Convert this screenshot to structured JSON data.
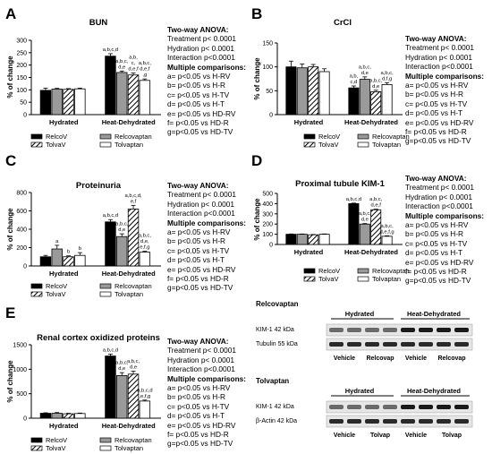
{
  "panels": [
    {
      "id": "A",
      "title": "BUN",
      "ylim": [
        0,
        300
      ],
      "yticks": [
        0,
        50,
        100,
        150,
        200,
        250,
        300
      ],
      "ylabel": "% of change",
      "groups": [
        "Hydrated",
        "Heat-Dehydrated"
      ],
      "values": [
        [
          98,
          103,
          102,
          104
        ],
        [
          236,
          170,
          160,
          138
        ]
      ],
      "errors": [
        [
          9,
          3,
          3,
          3
        ],
        [
          10,
          6,
          8,
          6
        ]
      ],
      "labels": [
        [
          "",
          "",
          "",
          ""
        ],
        [
          "a,b,c,d",
          "a,b,c,\nd,e",
          "a,b,\nc,\nd,e,f",
          "a,b,c,\nd,e,f\n,g"
        ]
      ],
      "legend": [
        "RelcoV",
        "Relcovaptan",
        "TolvaV",
        "Tolvaptan"
      ],
      "anova": {
        "heading": "Two-way  ANOVA:",
        "lines": [
          "Treatment p< 0.0001",
          "Hydration p< 0.0001",
          "Interaction p<0.0001"
        ],
        "mc_heading": "Multiple comparisons:",
        "mc": [
          "a= p<0.05 vs H-RV",
          "b= p<0.05 vs H-R",
          "c= p<0.05 vs H-TV",
          "d= p<0.05 vs H-T",
          "e= p<0.05 vs HD-RV",
          "f= p<0.05 vs HD-R",
          "g=p<0.05 vs HD-TV"
        ]
      }
    },
    {
      "id": "B",
      "title": "CrCl",
      "ylim": [
        0,
        150
      ],
      "yticks": [
        0,
        50,
        100,
        150
      ],
      "ylabel": "% of change",
      "groups": [
        "Hydrated",
        "Heat-Dehydrated"
      ],
      "values": [
        [
          100,
          98,
          100,
          90
        ],
        [
          56,
          74,
          48,
          63
        ]
      ],
      "errors": [
        [
          12,
          8,
          5,
          6
        ],
        [
          4,
          5,
          3,
          4
        ]
      ],
      "labels": [
        [
          "",
          "",
          "",
          ""
        ],
        [
          "a,b,\nc,d",
          "a,b,c,\nd,e",
          "a,b,c,\nd,e",
          "a,b,c,\nd,f,g"
        ]
      ],
      "legend": [
        "RelcoV",
        "Relcovaptan",
        "TolvaV",
        "Tolvaptan"
      ],
      "anova": {
        "heading": "Two-way  ANOVA:",
        "lines": [
          "Treatment p< 0.0001",
          "Hydration p< 0.0001",
          "Interaction p<0.0001"
        ],
        "mc_heading": "Multiple comparisons:",
        "mc": [
          "a= p<0.05 vs H-RV",
          "b= p<0.05 vs H-R",
          "c= p<0.05 vs H-TV",
          "d= p<0.05 vs H-T",
          "e= p<0.05 vs HD-RV",
          "f= p<0.05 vs HD-R",
          "g=p<0.05 vs HD-TV"
        ]
      }
    },
    {
      "id": "C",
      "title": "Proteinuria",
      "ylim": [
        0,
        800
      ],
      "yticks": [
        0,
        200,
        400,
        600,
        800
      ],
      "ylabel": "% of change",
      "groups": [
        "Hydrated",
        "Heat-Dehydrated"
      ],
      "values": [
        [
          100,
          185,
          100,
          115
        ],
        [
          480,
          320,
          620,
          150
        ]
      ],
      "errors": [
        [
          15,
          40,
          10,
          30
        ],
        [
          25,
          30,
          40,
          10
        ]
      ],
      "labels": [
        [
          "",
          "a",
          "b",
          "b"
        ],
        [
          "a,b,c,d",
          "a,b,c,\nd,e",
          "a,b,c,d,\ne,f",
          "a,b,c,\nd,e,\ne,f,g"
        ]
      ],
      "legend": [
        "RelcoV",
        "Relcovaptan",
        "TolvaV",
        "Tolvaptan"
      ],
      "anova": {
        "heading": "Two-way  ANOVA:",
        "lines": [
          "Treatment p< 0.0001",
          "Hydration p< 0.0001",
          "Interaction p<0.0001"
        ],
        "mc_heading": "Multiple comparisons:",
        "mc": [
          "a= p<0.05 vs H-RV",
          "b= p<0.05 vs H-R",
          "c= p<0.05 vs H-TV",
          "d= p<0.05 vs H-T",
          "e= p<0.05 vs HD-RV",
          "f= p<0.05 vs HD-R",
          "g=p<0.05 vs HD-TV"
        ]
      }
    },
    {
      "id": "D",
      "title": "Proximal tubule  KIM-1",
      "ylim": [
        0,
        500
      ],
      "yticks": [
        0,
        100,
        200,
        300,
        400,
        500
      ],
      "ylabel": "% of change",
      "groups": [
        "Hydrated",
        "Heat-Dehydrated"
      ],
      "values": [
        [
          100,
          100,
          95,
          100
        ],
        [
          400,
          200,
          340,
          80
        ]
      ],
      "errors": [
        [
          3,
          3,
          3,
          3
        ],
        [
          5,
          5,
          6,
          5
        ]
      ],
      "labels": [
        [
          "",
          "",
          "",
          ""
        ],
        [
          "a,b,c,d",
          "a,b,c,\nd,e",
          "a,b,c,\nd,e,f",
          "a,b,c,\nd,e,f,g"
        ]
      ],
      "legend": [
        "RelcoV",
        "Relcovaptan",
        "TolvaV",
        "Tolvaptan"
      ],
      "anova": {
        "heading": "Two-way  ANOVA:",
        "lines": [
          "Treatment p< 0.0001",
          "Hydration p< 0.0001",
          "Interaction p<0.0001"
        ],
        "mc_heading": "Multiple comparisons:",
        "mc": [
          "a= p<0.05 vs H-RV",
          "b= p<0.05 vs H-R",
          "c= p<0.05 vs H-TV",
          "d= p<0.05 vs H-T",
          "e= p<0.05 vs HD-RV",
          "f= p<0.05 vs HD-R",
          "g=p<0.05 vs HD-TV"
        ]
      }
    },
    {
      "id": "E",
      "title": "Renal cortex oxidized proteins",
      "ylim": [
        0,
        1500
      ],
      "yticks": [
        0,
        500,
        1000,
        1500
      ],
      "ylabel": "% of change",
      "groups": [
        "Hydrated",
        "Heat-Dehydrated"
      ],
      "values": [
        [
          100,
          100,
          90,
          95
        ],
        [
          1270,
          870,
          900,
          350
        ]
      ],
      "errors": [
        [
          10,
          15,
          10,
          10
        ],
        [
          40,
          60,
          60,
          20
        ]
      ],
      "labels": [
        [
          "",
          "",
          "",
          ""
        ],
        [
          "a,b,c,d",
          "a,b,c,\nd,e",
          "a,b,c,\nd,e",
          "a,b,c,d\n,e,f,g"
        ]
      ],
      "legend": [
        "RelcoV",
        "Relcovaptan",
        "TolvaV",
        "Tolvaptan"
      ],
      "anova": {
        "heading": "Two-way  ANOVA:",
        "lines": [
          "Treatment p< 0.0001",
          "Hydration p< 0.0001",
          "Interaction p<0.0001"
        ],
        "mc_heading": "Multiple comparisons:",
        "mc": [
          "a= p<0.05 vs H-RV",
          "b= p<0.05 vs H-R",
          "c= p<0.05 vs H-TV",
          "d= p<0.05 vs H-T",
          "e= p<0.05 vs HD-RV",
          "f= p<0.05 vs HD-R",
          "g=p<0.05 vs HD-TV"
        ]
      }
    }
  ],
  "blots": [
    {
      "title": "Relcovaptan",
      "groups": [
        "Hydrated",
        "Heat-Dehydrated"
      ],
      "rows": [
        "KIM-1 42 kDa",
        "Tubulin 55 kDa"
      ],
      "lanes": [
        "Vehicle",
        "Relcovap",
        "Vehicle",
        "Relcovap"
      ]
    },
    {
      "title": "Tolvaptan",
      "groups": [
        "Hydrated",
        "Heat-Dehydrated"
      ],
      "rows": [
        "KIM-1 42 kDa",
        "β-Actin 42 kDa"
      ],
      "lanes": [
        "Vehicle",
        "Tolvap",
        "Vehicle",
        "Tolvap"
      ]
    }
  ],
  "chart_data": [
    {
      "type": "bar",
      "panel": "A",
      "title": "BUN",
      "categories": [
        "Hydrated",
        "Heat-Dehydrated"
      ],
      "ylabel": "% of change",
      "ylim": [
        0,
        300
      ],
      "series": [
        {
          "name": "RelcoV",
          "values": [
            98,
            236
          ]
        },
        {
          "name": "Relcovaptan",
          "values": [
            103,
            170
          ]
        },
        {
          "name": "TolvaV",
          "values": [
            102,
            160
          ]
        },
        {
          "name": "Tolvaptan",
          "values": [
            104,
            138
          ]
        }
      ]
    },
    {
      "type": "bar",
      "panel": "B",
      "title": "CrCl",
      "categories": [
        "Hydrated",
        "Heat-Dehydrated"
      ],
      "ylabel": "% of change",
      "ylim": [
        0,
        150
      ],
      "series": [
        {
          "name": "RelcoV",
          "values": [
            100,
            56
          ]
        },
        {
          "name": "Relcovaptan",
          "values": [
            98,
            74
          ]
        },
        {
          "name": "TolvaV",
          "values": [
            100,
            48
          ]
        },
        {
          "name": "Tolvaptan",
          "values": [
            90,
            63
          ]
        }
      ]
    },
    {
      "type": "bar",
      "panel": "C",
      "title": "Proteinuria",
      "categories": [
        "Hydrated",
        "Heat-Dehydrated"
      ],
      "ylabel": "% of change",
      "ylim": [
        0,
        800
      ],
      "series": [
        {
          "name": "RelcoV",
          "values": [
            100,
            480
          ]
        },
        {
          "name": "Relcovaptan",
          "values": [
            185,
            320
          ]
        },
        {
          "name": "TolvaV",
          "values": [
            100,
            620
          ]
        },
        {
          "name": "Tolvaptan",
          "values": [
            115,
            150
          ]
        }
      ]
    },
    {
      "type": "bar",
      "panel": "D",
      "title": "Proximal tubule  KIM-1",
      "categories": [
        "Hydrated",
        "Heat-Dehydrated"
      ],
      "ylabel": "% of change",
      "ylim": [
        0,
        500
      ],
      "series": [
        {
          "name": "RelcoV",
          "values": [
            100,
            400
          ]
        },
        {
          "name": "Relcovaptan",
          "values": [
            100,
            200
          ]
        },
        {
          "name": "TolvaV",
          "values": [
            95,
            340
          ]
        },
        {
          "name": "Tolvaptan",
          "values": [
            100,
            80
          ]
        }
      ]
    },
    {
      "type": "bar",
      "panel": "E",
      "title": "Renal cortex oxidized proteins",
      "categories": [
        "Hydrated",
        "Heat-Dehydrated"
      ],
      "ylabel": "% of change",
      "ylim": [
        0,
        1500
      ],
      "series": [
        {
          "name": "RelcoV",
          "values": [
            100,
            1270
          ]
        },
        {
          "name": "Relcovaptan",
          "values": [
            100,
            870
          ]
        },
        {
          "name": "TolvaV",
          "values": [
            90,
            900
          ]
        },
        {
          "name": "Tolvaptan",
          "values": [
            95,
            350
          ]
        }
      ]
    }
  ]
}
